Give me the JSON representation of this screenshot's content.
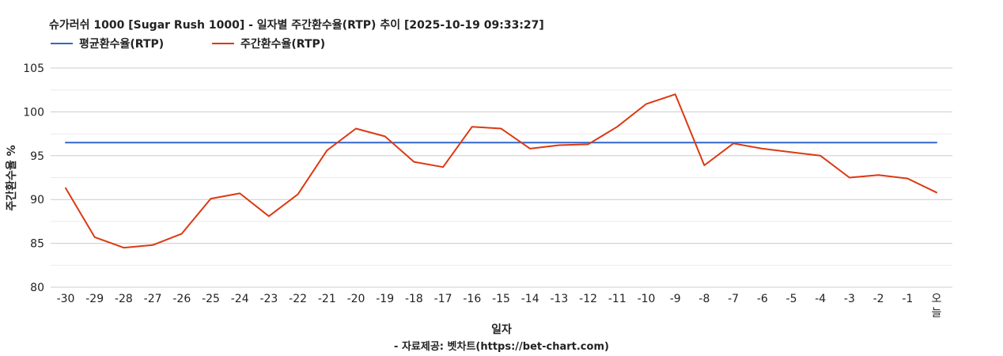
{
  "chart_data": {
    "type": "line",
    "title": "슈가러쉬 1000 [Sugar Rush 1000] - 일자별 주간환수율(RTP) 추이 [2025-10-19 09:33:27]",
    "xlabel": "일자",
    "ylabel": "주간환수율 %",
    "credit": "- 자료제공: 벳차트(https://bet-chart.com)",
    "legend_position": "top-left",
    "grid": true,
    "ylim": [
      80,
      105
    ],
    "yticks": [
      80,
      85,
      90,
      95,
      100,
      105
    ],
    "categories": [
      "-30",
      "-29",
      "-28",
      "-27",
      "-26",
      "-25",
      "-24",
      "-23",
      "-22",
      "-21",
      "-20",
      "-19",
      "-18",
      "-17",
      "-16",
      "-15",
      "-14",
      "-13",
      "-12",
      "-11",
      "-10",
      "-9",
      "-8",
      "-7",
      "-6",
      "-5",
      "-4",
      "-3",
      "-2",
      "-1",
      "오늘"
    ],
    "series": [
      {
        "name": "평균환수율(RTP)",
        "color": "#3366cc",
        "values": [
          96.5,
          96.5,
          96.5,
          96.5,
          96.5,
          96.5,
          96.5,
          96.5,
          96.5,
          96.5,
          96.5,
          96.5,
          96.5,
          96.5,
          96.5,
          96.5,
          96.5,
          96.5,
          96.5,
          96.5,
          96.5,
          96.5,
          96.5,
          96.5,
          96.5,
          96.5,
          96.5,
          96.5,
          96.5,
          96.5,
          96.5
        ]
      },
      {
        "name": "주간환수율(RTP)",
        "color": "#dc3912",
        "values": [
          91.3,
          85.7,
          84.5,
          84.8,
          86.1,
          90.1,
          90.7,
          88.1,
          90.6,
          95.6,
          98.1,
          97.2,
          94.3,
          93.7,
          98.3,
          98.1,
          95.8,
          96.2,
          96.3,
          98.3,
          100.9,
          102.0,
          93.9,
          96.4,
          95.8,
          95.4,
          95.0,
          92.5,
          92.8,
          92.4,
          90.8
        ]
      }
    ]
  }
}
